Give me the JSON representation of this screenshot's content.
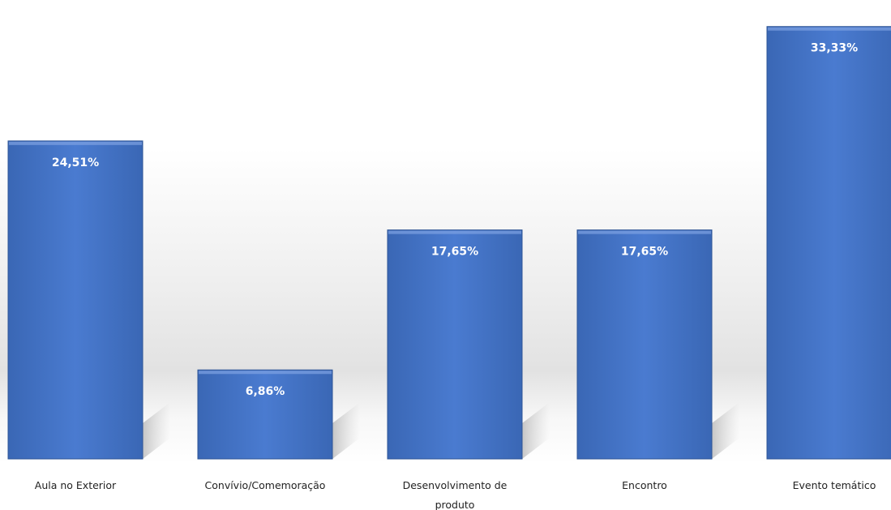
{
  "chart_data": {
    "type": "bar",
    "title": "",
    "xlabel": "",
    "ylabel": "",
    "categories": [
      "Aula no Exterior",
      "Convívio/Comemoração",
      "Desenvolvimento de produto",
      "Encontro",
      "Evento temático"
    ],
    "category_lines": [
      [
        "Aula no Exterior"
      ],
      [
        "Convívio/Comemoração"
      ],
      [
        "Desenvolvimento de",
        "produto"
      ],
      [
        "Encontro"
      ],
      [
        "Evento temático"
      ]
    ],
    "values": [
      24.51,
      6.86,
      17.65,
      17.65,
      33.33
    ],
    "data_labels": [
      "24,51%",
      "6,86%",
      "17,65%",
      "17,65%",
      "33,33%"
    ],
    "ylim": [
      0,
      34.5
    ],
    "grid": false,
    "legend": "none",
    "bar_color": "#4577CC"
  }
}
